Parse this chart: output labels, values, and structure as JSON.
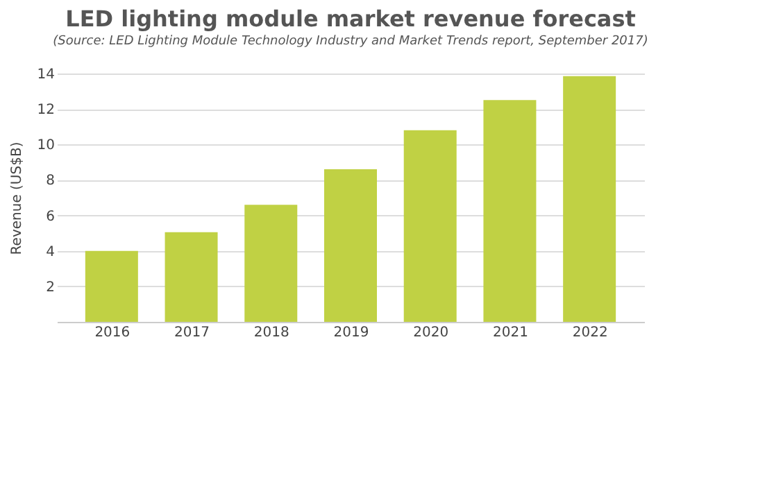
{
  "chart_data": {
    "type": "bar",
    "title": "LED lighting module market revenue forecast",
    "subtitle": "(Source: LED Lighting Module Technology Industry and Market Trends report, September 2017)",
    "ylabel": "Revenue  (US$B)",
    "categories": [
      "2016",
      "2017",
      "2018",
      "2019",
      "2020",
      "2021",
      "2022"
    ],
    "values": [
      4.0,
      5.05,
      6.6,
      8.6,
      10.8,
      12.5,
      13.85
    ],
    "color": "#c0d144",
    "ylim": [
      0,
      14
    ],
    "yticks": [
      {
        "value": 0,
        "label": null
      },
      2,
      4,
      6,
      8,
      10,
      12,
      14
    ],
    "grid": "y"
  }
}
